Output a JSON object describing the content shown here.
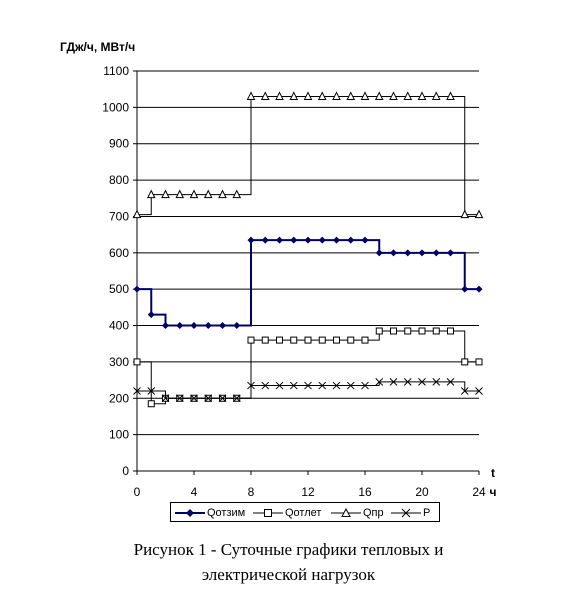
{
  "chart_data": {
    "type": "line",
    "step": true,
    "ylabel": "ГДж/ч, МВт/ч",
    "xlabel_top": "t",
    "xlabel_bottom": "ч",
    "xlim": [
      0,
      24
    ],
    "ylim": [
      0,
      1100
    ],
    "xticks": [
      0,
      4,
      8,
      12,
      16,
      20,
      24
    ],
    "yticks": [
      0,
      100,
      200,
      300,
      400,
      500,
      600,
      700,
      800,
      900,
      1000,
      1100
    ],
    "grid": "horizontal",
    "legend_position": "bottom",
    "series": [
      {
        "name": "Qотзим",
        "marker": "diamond-filled",
        "color": "#000066",
        "line_width": 2,
        "x": [
          0,
          1,
          2,
          3,
          4,
          5,
          6,
          7,
          8,
          9,
          10,
          11,
          12,
          13,
          14,
          15,
          16,
          17,
          18,
          19,
          20,
          21,
          22,
          23,
          24
        ],
        "values": [
          500,
          430,
          400,
          400,
          400,
          400,
          400,
          400,
          635,
          635,
          635,
          635,
          635,
          635,
          635,
          635,
          635,
          600,
          600,
          600,
          600,
          600,
          600,
          500,
          500
        ]
      },
      {
        "name": "Qотлет",
        "marker": "square-open",
        "color": "#000000",
        "line_width": 1,
        "x": [
          0,
          1,
          2,
          3,
          4,
          5,
          6,
          7,
          8,
          9,
          10,
          11,
          12,
          13,
          14,
          15,
          16,
          17,
          18,
          19,
          20,
          21,
          22,
          23,
          24
        ],
        "values": [
          300,
          185,
          200,
          200,
          200,
          200,
          200,
          200,
          360,
          360,
          360,
          360,
          360,
          360,
          360,
          360,
          360,
          385,
          385,
          385,
          385,
          385,
          385,
          300,
          300
        ]
      },
      {
        "name": "Qпр",
        "marker": "triangle-open",
        "color": "#000000",
        "line_width": 1,
        "x": [
          0,
          1,
          2,
          3,
          4,
          5,
          6,
          7,
          8,
          9,
          10,
          11,
          12,
          13,
          14,
          15,
          16,
          17,
          18,
          19,
          20,
          21,
          22,
          23,
          24
        ],
        "values": [
          705,
          760,
          760,
          760,
          760,
          760,
          760,
          760,
          1030,
          1030,
          1030,
          1030,
          1030,
          1030,
          1030,
          1030,
          1030,
          1030,
          1030,
          1030,
          1030,
          1030,
          1030,
          705,
          705
        ]
      },
      {
        "name": "P",
        "marker": "x",
        "color": "#000000",
        "line_width": 1,
        "x": [
          0,
          1,
          2,
          3,
          4,
          5,
          6,
          7,
          8,
          9,
          10,
          11,
          12,
          13,
          14,
          15,
          16,
          17,
          18,
          19,
          20,
          21,
          22,
          23,
          24
        ],
        "values": [
          220,
          220,
          200,
          200,
          200,
          200,
          200,
          200,
          235,
          235,
          235,
          235,
          235,
          235,
          235,
          235,
          235,
          245,
          245,
          245,
          245,
          245,
          245,
          220,
          220
        ]
      }
    ]
  },
  "caption": {
    "line1": "Рисунок 1 - Суточные графики тепловых и",
    "line2": "электрической нагрузок"
  }
}
